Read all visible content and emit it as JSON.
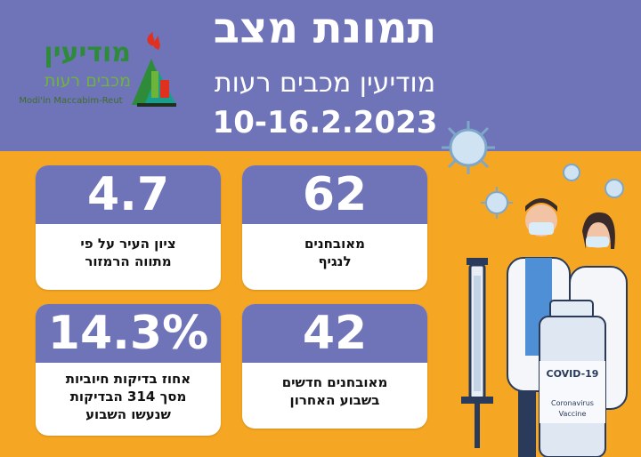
{
  "header": {
    "title": "תמונת מצב",
    "subtitle": "מודיעין מכבים רעות",
    "dates": "10-16.2.2023"
  },
  "logo": {
    "hebrew_name": "מודיעין",
    "hebrew_sub": "מכבים רעות",
    "english_name": "Modi'in Maccabim-Reut"
  },
  "cards": [
    {
      "value": "62",
      "lines": [
        "מאובחנים",
        "לנגיף"
      ]
    },
    {
      "value": "4.7",
      "lines": [
        "ציון העיר על פי",
        "מתווה הרמזור"
      ]
    },
    {
      "value": "42",
      "lines": [
        "מאובחנים חדשים",
        "בשבוע האחרון"
      ]
    },
    {
      "value": "14.3%",
      "lines": [
        "אחוז בדיקות חיוביות",
        "מסך 314 הבדיקות",
        "שנעשו השבוע"
      ]
    }
  ],
  "illustration": {
    "vial_label": "COVID-19",
    "vial_sub": [
      "Coronavirus",
      "Vaccine"
    ]
  },
  "colors": {
    "header_bg": "#6f73b8",
    "body_bg": "#f5a623",
    "card_top": "#6f73b8",
    "logo_green": "#2e8b3a"
  },
  "icons": [
    "virus-icon",
    "syringe-icon",
    "vaccine-vial-icon",
    "doctor-icon",
    "nurse-icon",
    "city-logo-icon"
  ]
}
